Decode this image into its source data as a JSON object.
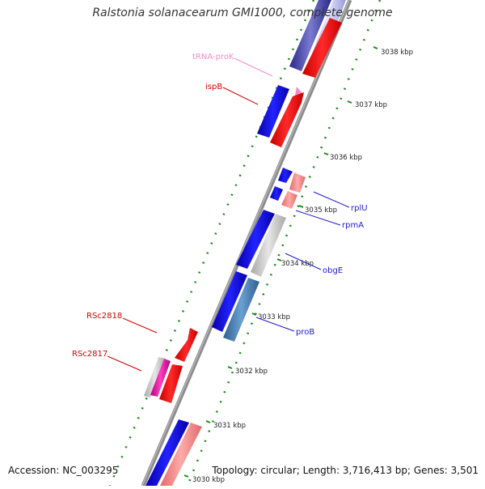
{
  "title": "Ralstonia solanacearum GMI1000, complete genome",
  "footer": {
    "accession": "Accession: NC_003295",
    "summary": "Topology: circular; Length: 3,716,413 bp; Genes: 3,501"
  },
  "kbp_labels": [
    "3038 kbp",
    "3037 kbp",
    "3036 kbp",
    "3035 kbp",
    "3034 kbp",
    "3033 kbp",
    "3032 kbp",
    "3031 kbp",
    "3030 kbp"
  ],
  "gene_labels": {
    "trna_prok": "tRNA-proK",
    "ispb": "ispB",
    "rplu": "rplU",
    "rpma": "rpmA",
    "obge": "obgE",
    "prob": "proB",
    "rsc2818": "RSc2818",
    "rsc2817": "RSc2817"
  },
  "colors": {
    "backbone": "#8c8c8c",
    "gc_dots": "#1a8a1a",
    "gene_blue": "#0a00e6",
    "gene_red": "#ff0000",
    "gene_pink": "#f08080",
    "gene_grey": "#c8c8c8",
    "gene_steel": "#4682b4",
    "gene_magenta": "#e0109a",
    "gene_navy": "#3b3bb0",
    "label_red": "#d40000",
    "label_blue": "#1a1ad0",
    "label_pink": "#f58cc8"
  }
}
